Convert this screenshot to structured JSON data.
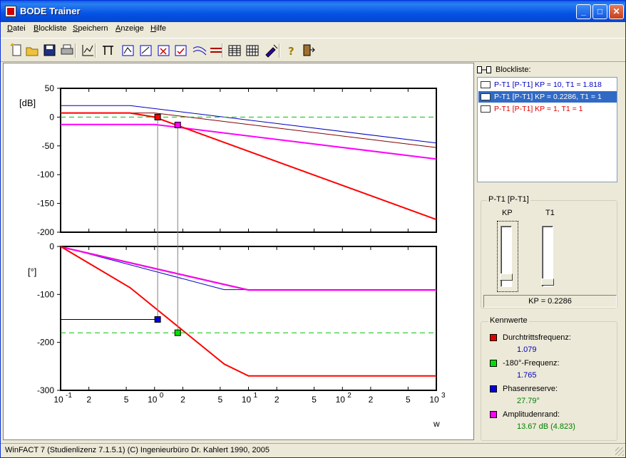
{
  "window": {
    "title": "BODE Trainer",
    "minimize": "_",
    "maximize": "□",
    "close": "✕"
  },
  "menu": [
    "Datei",
    "Blockliste",
    "Speichern",
    "Anzeige",
    "Hilfe"
  ],
  "menu_mnemonics": [
    "D",
    "B",
    "S",
    "A",
    "H"
  ],
  "toolbar": [
    "new-icon",
    "open-icon",
    "save-icon",
    "print-icon",
    "chart-edit-icon",
    "split-icon",
    "block-add-icon",
    "block-edit-icon",
    "block-delete-icon",
    "block-check-icon",
    "asymptote-icon",
    "lines-icon",
    "grid-fine-icon",
    "grid-icon",
    "marker-icon",
    "help-icon",
    "exit-icon"
  ],
  "blocklist": {
    "title": "Blockliste:",
    "items": [
      {
        "text": "P-T1 [P-T1] KP = 10, T1 = 1.818",
        "selected": false,
        "color": "#0000c0"
      },
      {
        "text": "P-T1 [P-T1] KP = 0.2286, T1 = 1",
        "selected": true,
        "color": "#ffffff"
      },
      {
        "text": "P-T1 [P-T1] KP = 1, T1 = 1",
        "selected": false,
        "color": "#e00000"
      }
    ]
  },
  "params": {
    "group_title": "P-T1 [P-T1]",
    "kp_label": "KP",
    "t1_label": "T1",
    "kp_slider": 0.2286,
    "t1_slider": 0.0,
    "readout": "KP =   0.2286"
  },
  "kennwerte": {
    "title": "Kennwerte",
    "items": [
      {
        "label": "Durchtrittsfrequenz:",
        "value": "1.079",
        "color": "#e00000",
        "value_color": "#0000c0"
      },
      {
        "label": "-180°-Frequenz:",
        "value": "1.765",
        "color": "#00e000",
        "value_color": "#0000c0"
      },
      {
        "label": "Phasenreserve:",
        "value": "27.79°",
        "color": "#0000e0",
        "value_color": "#008000"
      },
      {
        "label": "Amplitudenrand:",
        "value": "13.67 dB (4.823)",
        "color": "#ff00ff",
        "value_color": "#008000"
      }
    ]
  },
  "status": "WinFACT 7 (Studienlizenz 7.1.5.1)  (C) Ingenieurbüro Dr. Kahlert 1990, 2005",
  "chart_data": [
    {
      "type": "line",
      "title": "",
      "ylabel": "[dB]",
      "xlabel": "w",
      "xscale": "log",
      "xlim": [
        0.1,
        1000
      ],
      "ylim": [
        -200,
        50
      ],
      "yticks": [
        50,
        0,
        -50,
        -100,
        -150,
        -200
      ],
      "grid": false,
      "series": [
        {
          "color": "#0000c0",
          "x": [
            0.1,
            0.55,
            1000
          ],
          "y": [
            20,
            20,
            -45
          ]
        },
        {
          "color": "#800000",
          "x": [
            0.1,
            1,
            1000
          ],
          "y": [
            7.2,
            7.2,
            -52.8
          ]
        },
        {
          "color": "#ff00ff",
          "x": [
            0.1,
            1,
            1000
          ],
          "y": [
            -12.8,
            -12.8,
            -72.8
          ]
        },
        {
          "color": "#ff0000",
          "x": [
            0.1,
            0.55,
            1,
            1000
          ],
          "y": [
            7.2,
            7.2,
            0,
            -178
          ]
        },
        {
          "color": "#00c000",
          "dashed": true,
          "x": [
            0.1,
            1000
          ],
          "y": [
            0,
            0
          ]
        }
      ],
      "markers": [
        {
          "x": 1.079,
          "y": 0,
          "color": "#ff0000"
        },
        {
          "x": 1.765,
          "y": -13.67,
          "color": "#ff00ff"
        }
      ]
    },
    {
      "type": "line",
      "title": "",
      "ylabel": "[°]",
      "xlabel": "w",
      "xscale": "log",
      "xlim": [
        0.1,
        1000
      ],
      "ylim": [
        -300,
        0
      ],
      "yticks": [
        0,
        -100,
        -200,
        -300
      ],
      "xticks": [
        {
          "v": 0.1,
          "label": "10",
          "sup": "-1"
        },
        {
          "v": 0.2,
          "label": "2"
        },
        {
          "v": 0.5,
          "label": "5"
        },
        {
          "v": 1,
          "label": "10",
          "sup": "0"
        },
        {
          "v": 2,
          "label": "2"
        },
        {
          "v": 5,
          "label": "5"
        },
        {
          "v": 10,
          "label": "10",
          "sup": "1"
        },
        {
          "v": 20,
          "label": "2"
        },
        {
          "v": 50,
          "label": "5"
        },
        {
          "v": 100,
          "label": "10",
          "sup": "2"
        },
        {
          "v": 200,
          "label": "2"
        },
        {
          "v": 500,
          "label": "5"
        },
        {
          "v": 1000,
          "label": "10",
          "sup": "3"
        }
      ],
      "grid": false,
      "series": [
        {
          "color": "#0000c0",
          "x": [
            0.1,
            5.5,
            10,
            1000
          ],
          "y": [
            0,
            -90,
            -90,
            -90
          ]
        },
        {
          "color": "#800000",
          "x": [
            0.1,
            10,
            1000
          ],
          "y": [
            0,
            -90,
            -90
          ]
        },
        {
          "color": "#ff00ff",
          "x": [
            0.1,
            10,
            1000
          ],
          "y": [
            -1,
            -91,
            -91
          ]
        },
        {
          "color": "#ff0000",
          "x": [
            0.1,
            0.55,
            5.5,
            10,
            1000
          ],
          "y": [
            0,
            -86,
            -245,
            -270,
            -270
          ]
        },
        {
          "color": "#00c000",
          "dashed": true,
          "x": [
            0.1,
            1000
          ],
          "y": [
            -180,
            -180
          ]
        }
      ],
      "markers": [
        {
          "x": 1.079,
          "y": -152.21,
          "color": "#0000e0"
        },
        {
          "x": 1.765,
          "y": -180,
          "color": "#00e000"
        }
      ]
    }
  ]
}
